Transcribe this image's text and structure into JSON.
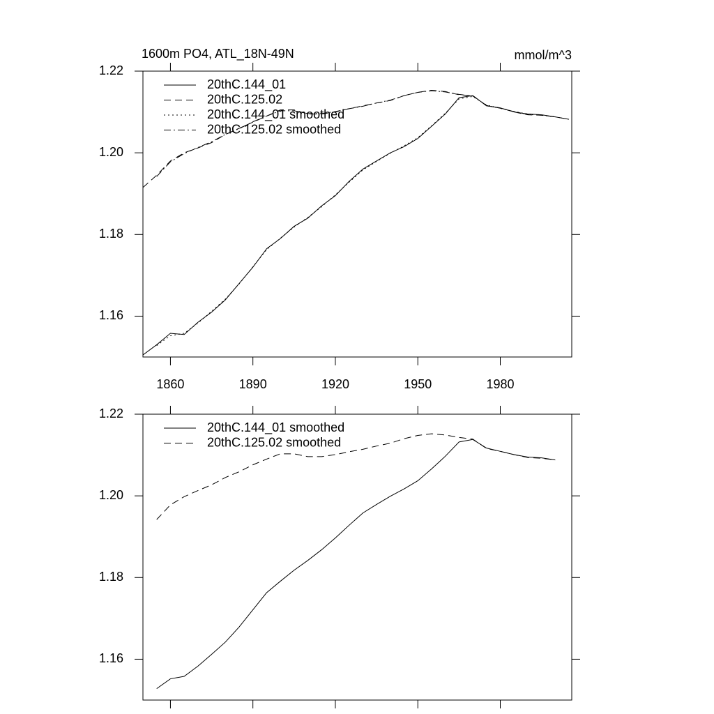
{
  "chart_data": [
    {
      "type": "line",
      "title": "1600m PO4, ATL_18N-49N",
      "units": "mmol/m^3",
      "x": [
        1850,
        1855,
        1860,
        1865,
        1870,
        1875,
        1880,
        1885,
        1890,
        1895,
        1900,
        1905,
        1910,
        1915,
        1920,
        1925,
        1930,
        1935,
        1940,
        1945,
        1950,
        1955,
        1960,
        1965,
        1970,
        1975,
        1980,
        1985,
        1990,
        1995,
        2000,
        2005
      ],
      "series": [
        {
          "name": "20thC.144_01",
          "color": "#000000",
          "dash": "solid",
          "values": [
            1.1505,
            1.153,
            1.1558,
            1.1555,
            1.1585,
            1.161,
            1.164,
            1.168,
            1.172,
            1.1765,
            1.179,
            1.182,
            1.184,
            1.187,
            1.1895,
            1.193,
            1.196,
            1.198,
            1.2,
            1.2015,
            1.2035,
            1.2065,
            1.2095,
            1.2135,
            1.214,
            1.2115,
            1.211,
            1.21,
            1.2095,
            1.2093,
            1.2088,
            1.2082
          ]
        },
        {
          "name": "20thC.125.02",
          "color": "#000000",
          "dash": "dashed",
          "values": [
            1.1915,
            1.1945,
            1.198,
            1.2,
            1.2012,
            1.2025,
            1.2045,
            1.206,
            1.2075,
            1.209,
            1.2105,
            1.2105,
            1.2095,
            1.2095,
            1.21,
            1.2108,
            1.2115,
            1.2122,
            1.2128,
            1.214,
            1.2148,
            1.2153,
            1.215,
            1.2142,
            1.214,
            1.2115,
            1.211,
            1.21,
            1.2093,
            1.2092,
            1.2088,
            1.2082
          ]
        },
        {
          "name": "20thC.144_01 smoothed",
          "color": "#000000",
          "dash": "dotted",
          "values": [
            null,
            1.1528,
            1.1552,
            1.1558,
            1.1583,
            1.1612,
            1.1642,
            1.1679,
            1.1721,
            1.1763,
            1.1791,
            1.1818,
            1.1842,
            1.1868,
            1.1897,
            1.1928,
            1.1958,
            1.1979,
            1.1999,
            1.2017,
            1.2037,
            1.2066,
            1.2097,
            1.2132,
            1.2138,
            1.2117,
            1.2109,
            1.2101,
            1.2095,
            1.2093,
            1.2088,
            null
          ]
        },
        {
          "name": "20thC.125.02 smoothed",
          "color": "#000000",
          "dash": "dashdot",
          "values": [
            null,
            1.1942,
            1.1978,
            1.1998,
            1.2013,
            1.2027,
            1.2045,
            1.2059,
            1.2076,
            1.209,
            1.2103,
            1.2103,
            1.2096,
            1.2096,
            1.2101,
            1.2108,
            1.2114,
            1.2122,
            1.2129,
            1.214,
            1.2148,
            1.2152,
            1.2149,
            1.2143,
            1.2139,
            1.2116,
            1.2109,
            1.2101,
            1.2094,
            1.2092,
            1.2088,
            null
          ]
        }
      ],
      "xlim": [
        1850,
        2006
      ],
      "ylim": [
        1.15,
        1.22
      ],
      "xticks": [
        1860,
        1890,
        1920,
        1950,
        1980
      ],
      "xtick_labels": true,
      "yticks": [
        1.16,
        1.18,
        {
          "value": 1.2,
          "label": "1.20"
        },
        1.22
      ],
      "legend": "upper left"
    },
    {
      "type": "line",
      "x": [
        1850,
        1855,
        1860,
        1865,
        1870,
        1875,
        1880,
        1885,
        1890,
        1895,
        1900,
        1905,
        1910,
        1915,
        1920,
        1925,
        1930,
        1935,
        1940,
        1945,
        1950,
        1955,
        1960,
        1965,
        1970,
        1975,
        1980,
        1985,
        1990,
        1995,
        2000,
        2005
      ],
      "series": [
        {
          "name": "20thC.144_01 smoothed",
          "color": "#000000",
          "dash": "solid",
          "values": [
            null,
            1.1528,
            1.1552,
            1.1558,
            1.1583,
            1.1612,
            1.1642,
            1.1679,
            1.1721,
            1.1763,
            1.1791,
            1.1818,
            1.1842,
            1.1868,
            1.1897,
            1.1928,
            1.1958,
            1.1979,
            1.1999,
            1.2017,
            1.2037,
            1.2066,
            1.2097,
            1.2132,
            1.2138,
            1.2117,
            1.2109,
            1.2101,
            1.2095,
            1.2093,
            1.2088,
            null
          ]
        },
        {
          "name": "20thC.125.02 smoothed",
          "color": "#000000",
          "dash": "dashed",
          "values": [
            null,
            1.1942,
            1.1978,
            1.1998,
            1.2013,
            1.2027,
            1.2045,
            1.2059,
            1.2076,
            1.209,
            1.2103,
            1.2103,
            1.2096,
            1.2096,
            1.2101,
            1.2108,
            1.2114,
            1.2122,
            1.2129,
            1.214,
            1.2148,
            1.2152,
            1.2149,
            1.2143,
            1.2139,
            1.2116,
            1.2109,
            1.2101,
            1.2094,
            1.2092,
            1.2088,
            null
          ]
        }
      ],
      "xlim": [
        1850,
        2006
      ],
      "ylim": [
        1.15,
        1.22
      ],
      "xticks": [
        1860,
        1890,
        1920,
        1950,
        1980
      ],
      "xtick_labels": false,
      "yticks": [
        1.16,
        1.18,
        {
          "value": 1.2,
          "label": "1.20"
        },
        1.22
      ],
      "legend": "upper left"
    }
  ]
}
